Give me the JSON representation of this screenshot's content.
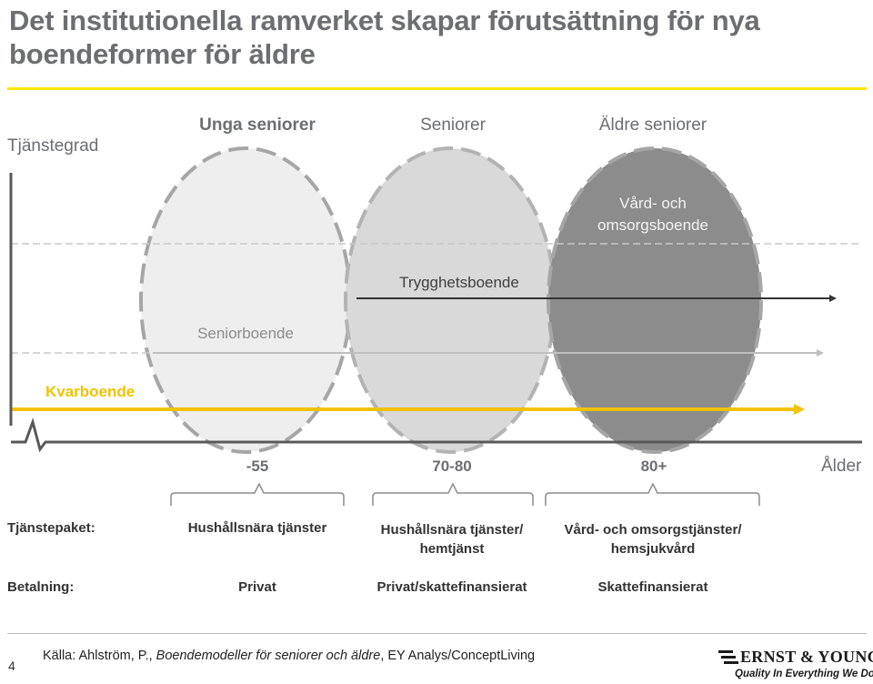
{
  "title": "Det institutionella ramverket skapar förutsättning för nya boendeformer för äldre",
  "y_axis_label": "Tjänstegrad",
  "x_axis_label": "Ålder",
  "groups": [
    {
      "name": "Unga seniorer",
      "age": "-55",
      "service": "Hushållsnära tjänster",
      "payment": "Privat"
    },
    {
      "name": "Seniorer",
      "age": "70-80",
      "service": "Hushållsnära tjänster/ hemtjänst",
      "payment": "Privat/skattefinansierat"
    },
    {
      "name": "Äldre seniorer",
      "age": "80+",
      "service": "Vård- och omsorgstjänster/ hemsjukvård",
      "payment": "Skattefinansierat"
    }
  ],
  "housing": {
    "care": "Vård- och omsorgsboende",
    "safety": "Trygghetsboende",
    "senior": "Seniorboende",
    "stay": "Kvarboende"
  },
  "rows": {
    "service_label": "Tjänstepaket:",
    "payment_label": "Betalning:"
  },
  "footer": {
    "page": "4",
    "source_prefix": "Källa: Ahlström, P., ",
    "source_title": "Boendemodeller för seniorer och äldre",
    "source_suffix": ", EY Analys/ConceptLiving",
    "logo_name": "ERNST & YOUNG",
    "logo_tagline": "Quality In Everything We Do"
  },
  "colors": {
    "accent_yellow": "#f2c200",
    "ellipse_light": "#eeeeee",
    "ellipse_mid": "#d9d9d9",
    "ellipse_dark": "#8c8c8c"
  }
}
